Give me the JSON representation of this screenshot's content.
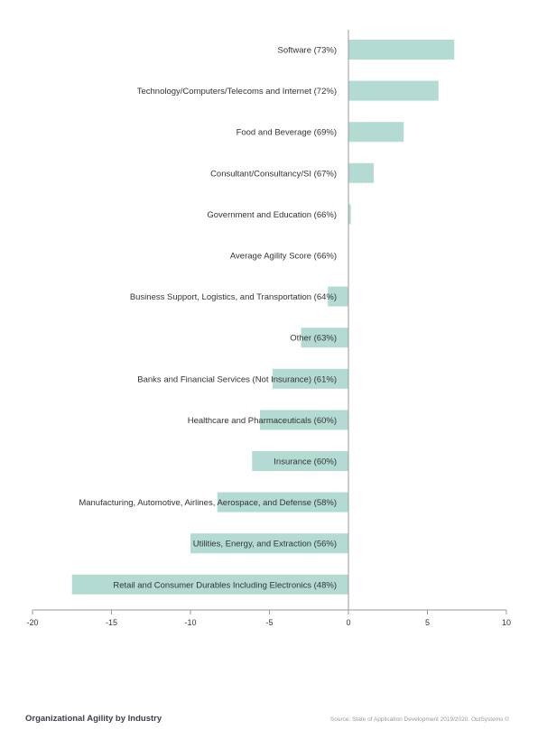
{
  "chart_data": {
    "type": "bar",
    "orientation": "horizontal",
    "categories": [
      "Software (73%)",
      "Technology/Computers/Telecoms and Internet (72%)",
      "Food and Beverage (69%)",
      "Consultant/Consultancy/SI (67%)",
      "Government and Education (66%)",
      "Average Agility Score (66%)",
      "Business Support, Logistics, and Transportation (64%)",
      "Other (63%)",
      "Banks and Financial Services (Not Insurance) (61%)",
      "Healthcare and Pharmaceuticals (60%)",
      "Insurance (60%)",
      "Manufacturing, Automotive, Airlines, Aerospace, and Defense (58%)",
      "Utilities, Energy, and Extraction (56%)",
      "Retail and Consumer Durables Including Electronics (48%)"
    ],
    "values": [
      6.7,
      5.7,
      3.5,
      1.6,
      0.15,
      0,
      -1.3,
      -3.0,
      -4.8,
      -5.6,
      -6.1,
      -8.3,
      -10.0,
      -17.5
    ],
    "xlim": [
      -20,
      10
    ],
    "xticks": [
      "-20",
      "-15",
      "-10",
      "-5",
      "0",
      "5",
      "10"
    ],
    "grid": false,
    "bar_color": "#b3dbd3",
    "axis_color": "#999999"
  },
  "footer": {
    "title": "Organizational Agility by Industry",
    "source": "Source: State of Application Development 2019/2020. OutSystems ©"
  }
}
